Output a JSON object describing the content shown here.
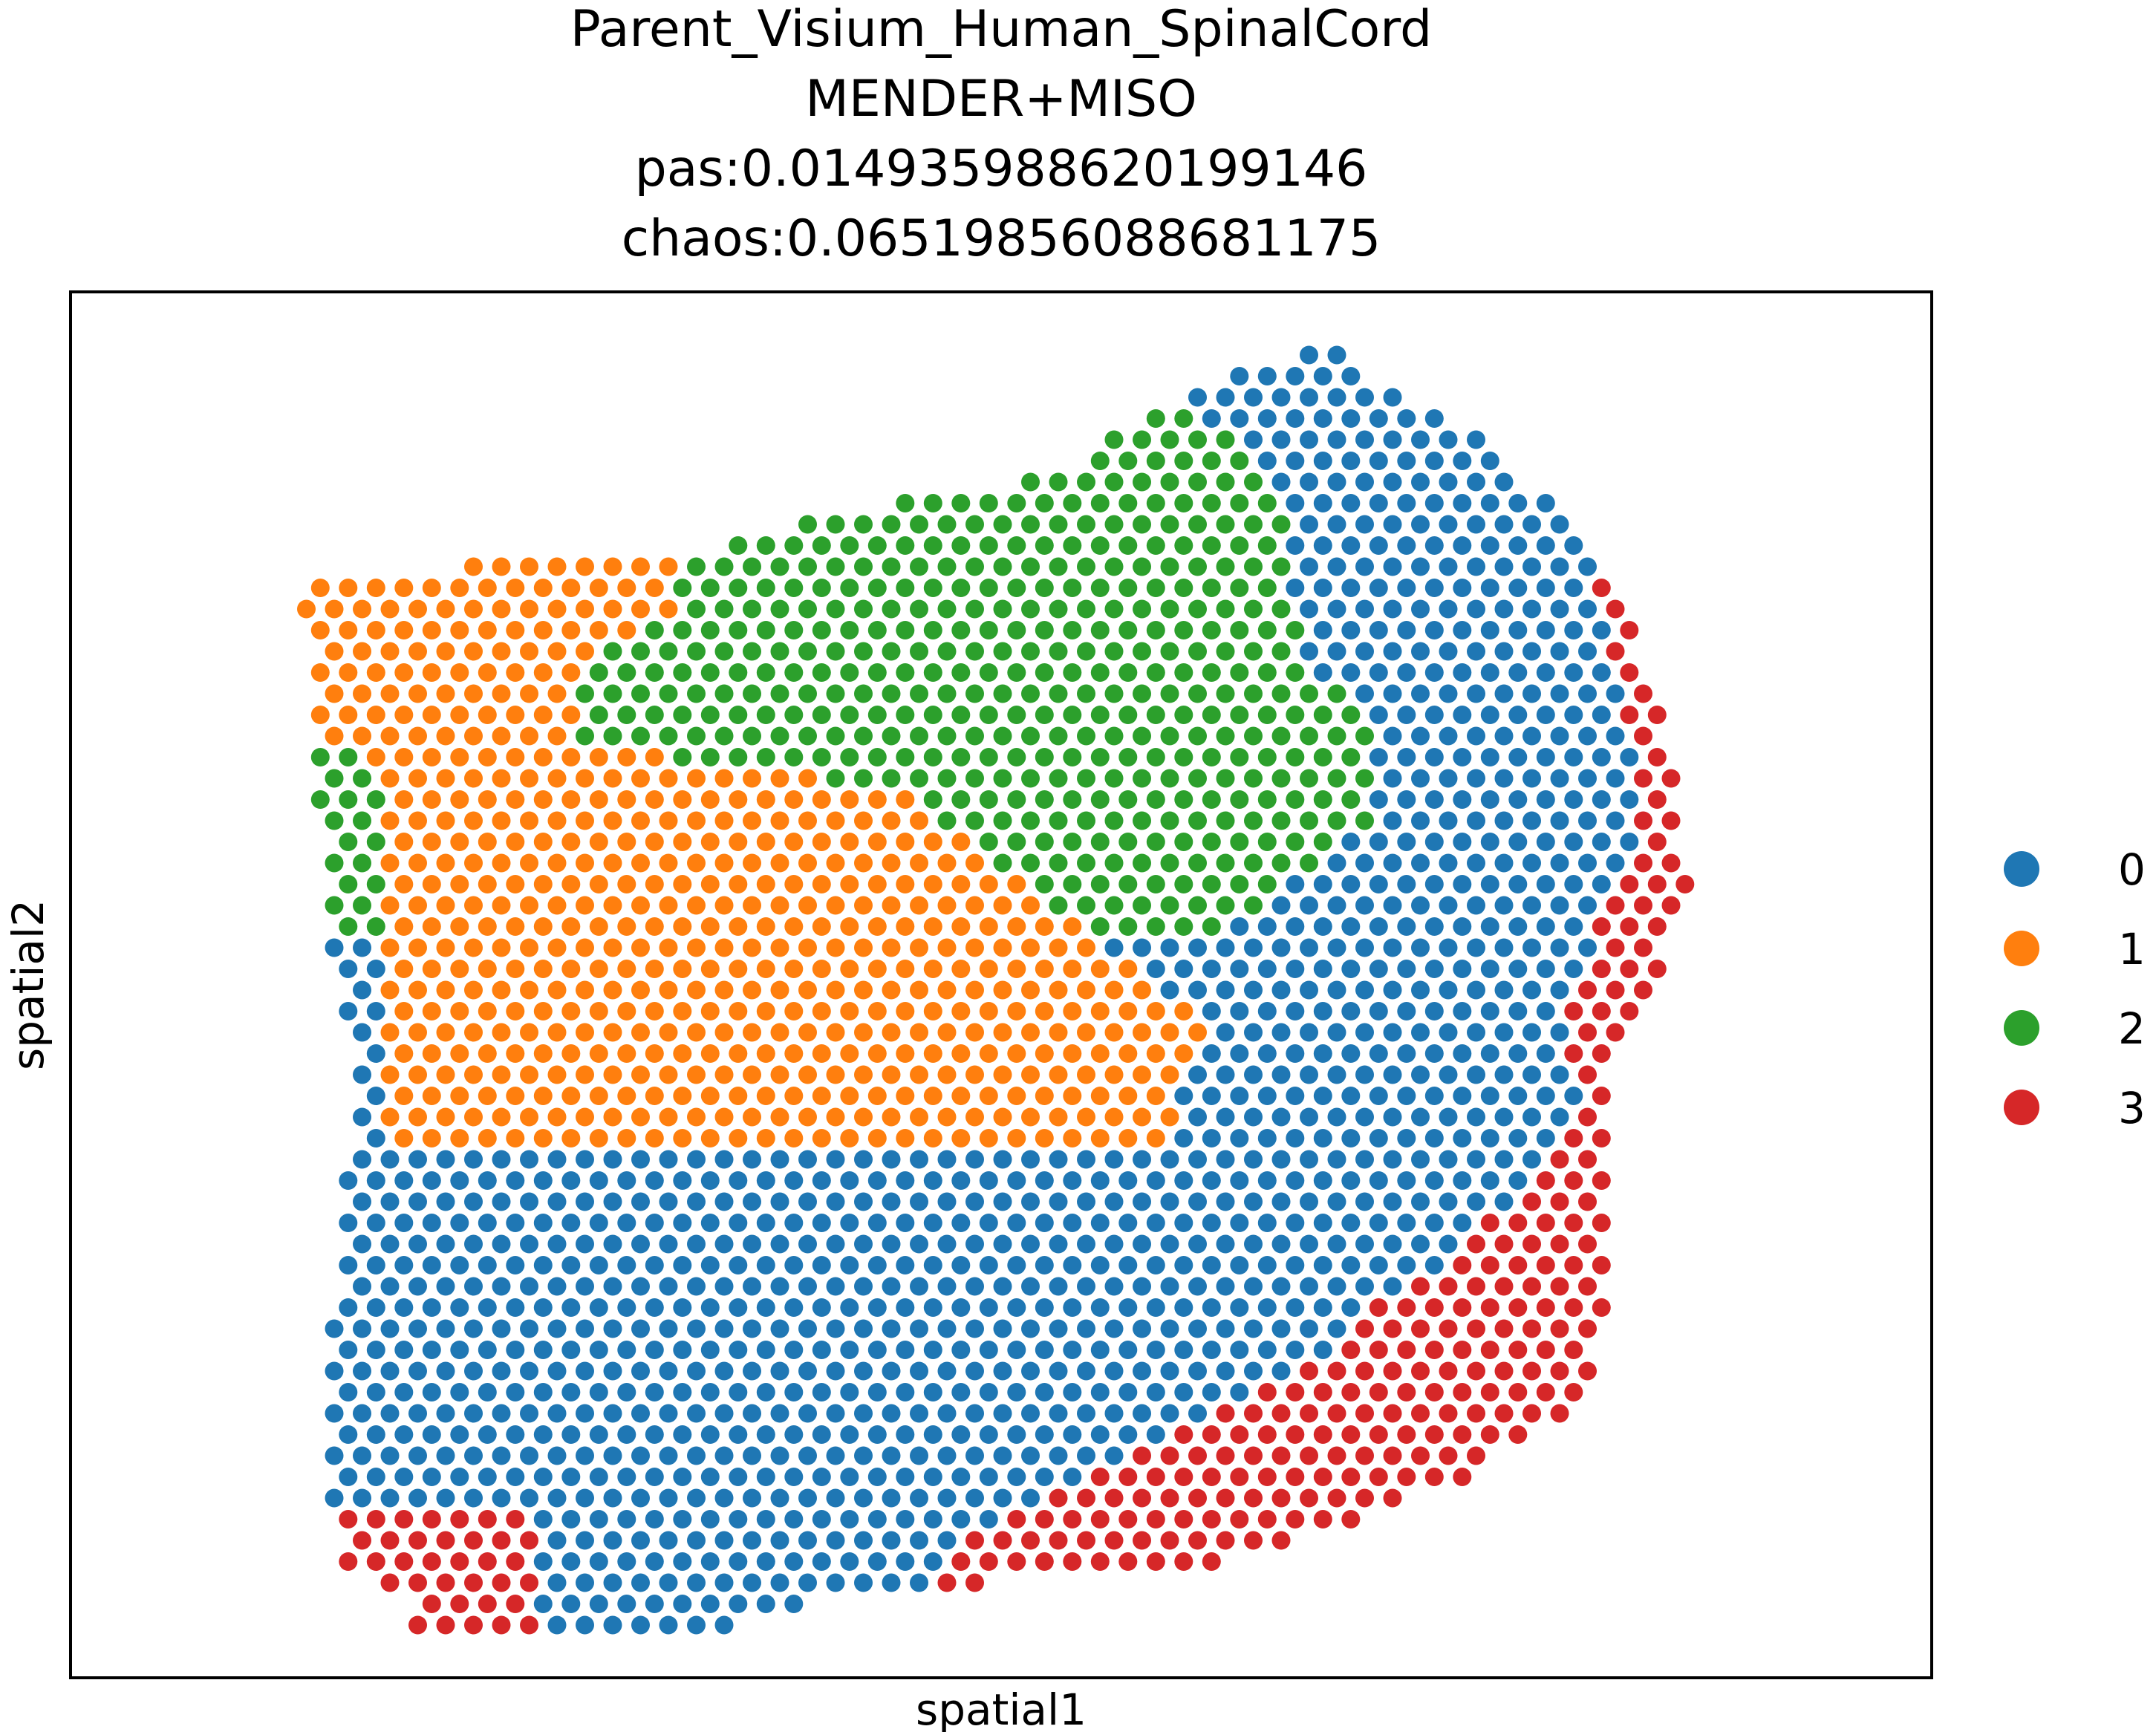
{
  "title_lines": [
    "Parent_Visium_Human_SpinalCord",
    "MENDER+MISO",
    "pas:0.014935988620199146",
    "chaos:0.06519856088681175"
  ],
  "chart_data": {
    "type": "scatter",
    "title": "Parent_Visium_Human_SpinalCord\nMENDER+MISO\npas:0.014935988620199146\nchaos:0.06519856088681175",
    "xlabel": "spatial1",
    "ylabel": "spatial2",
    "ticks": "none",
    "grid": false,
    "legend_position": "right",
    "series": [
      {
        "name": "0",
        "color": "#1f77b4",
        "region_description": "upper-right column and whole lower half of the tissue"
      },
      {
        "name": "1",
        "color": "#ff7f0e",
        "region_description": "upper-left and centre-left block"
      },
      {
        "name": "2",
        "color": "#2ca02c",
        "region_description": "upper-centre band"
      },
      {
        "name": "3",
        "color": "#d62728",
        "region_description": "right edge strip, lower-right crescent and a few bottom-left spots"
      }
    ]
  }
}
